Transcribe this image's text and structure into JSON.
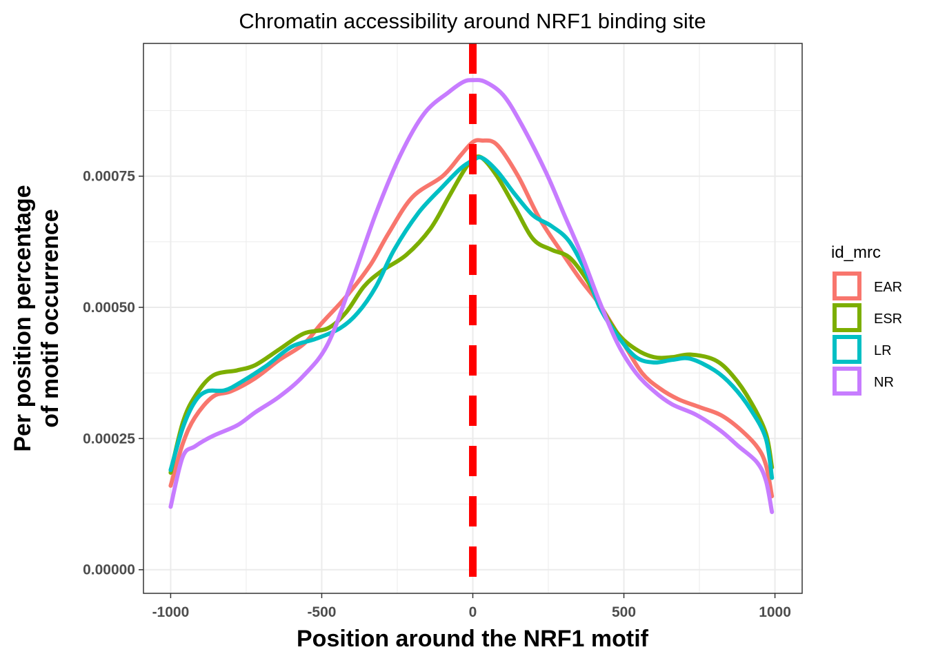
{
  "chart_data": {
    "type": "line",
    "title": "Chromatin accessibility around NRF1 binding site",
    "xlabel": "Position around the NRF1  motif",
    "ylabel_lines": [
      "Per position percentage",
      "of motif occurrence"
    ],
    "xlim": [
      -1090,
      1090
    ],
    "ylim": [
      -4.5e-05,
      0.001003
    ],
    "x_ticks": [
      -1000,
      -500,
      0,
      500,
      1000
    ],
    "x_tick_labels": [
      "-1000",
      "-500",
      "0",
      "500",
      "1000"
    ],
    "y_ticks": [
      0.0,
      0.00025,
      0.0005,
      0.00075
    ],
    "y_tick_labels": [
      "0.00000",
      "0.00025",
      "0.00050",
      "0.00075"
    ],
    "grid": true,
    "reference_line": {
      "x": 0,
      "style": "dashed",
      "color": "#ff0000"
    },
    "legend": {
      "title": "id_mrc",
      "position": "right"
    },
    "series": [
      {
        "name": "EAR",
        "color": "#F8766D",
        "points": [
          [
            -1000,
            0.00016
          ],
          [
            -960,
            0.00024
          ],
          [
            -920,
            0.00029
          ],
          [
            -860,
            0.00033
          ],
          [
            -800,
            0.00034
          ],
          [
            -720,
            0.000365
          ],
          [
            -640,
            0.0004
          ],
          [
            -560,
            0.00043
          ],
          [
            -500,
            0.00047
          ],
          [
            -420,
            0.00052
          ],
          [
            -340,
            0.00058
          ],
          [
            -280,
            0.00064
          ],
          [
            -200,
            0.00071
          ],
          [
            -100,
            0.00075
          ],
          [
            -40,
            0.00079
          ],
          [
            0,
            0.000815
          ],
          [
            30,
            0.000818
          ],
          [
            80,
            0.00081
          ],
          [
            150,
            0.00075
          ],
          [
            220,
            0.00067
          ],
          [
            300,
            0.0006
          ],
          [
            360,
            0.00055
          ],
          [
            420,
            0.000505
          ],
          [
            500,
            0.00043
          ],
          [
            560,
            0.000375
          ],
          [
            620,
            0.000345
          ],
          [
            680,
            0.000325
          ],
          [
            750,
            0.00031
          ],
          [
            820,
            0.000295
          ],
          [
            880,
            0.00027
          ],
          [
            940,
            0.000235
          ],
          [
            970,
            0.0002
          ],
          [
            990,
            0.00014
          ]
        ]
      },
      {
        "name": "ESR",
        "color": "#7CAE00",
        "points": [
          [
            -1000,
            0.000185
          ],
          [
            -960,
            0.00028
          ],
          [
            -920,
            0.00033
          ],
          [
            -860,
            0.00037
          ],
          [
            -780,
            0.00038
          ],
          [
            -720,
            0.00039
          ],
          [
            -640,
            0.00042
          ],
          [
            -560,
            0.00045
          ],
          [
            -480,
            0.00046
          ],
          [
            -420,
            0.00049
          ],
          [
            -360,
            0.00054
          ],
          [
            -300,
            0.00057
          ],
          [
            -220,
            0.0006
          ],
          [
            -140,
            0.00065
          ],
          [
            -80,
            0.00071
          ],
          [
            -30,
            0.00076
          ],
          [
            0,
            0.000782
          ],
          [
            30,
            0.000785
          ],
          [
            80,
            0.00075
          ],
          [
            140,
            0.00069
          ],
          [
            200,
            0.00063
          ],
          [
            260,
            0.00061
          ],
          [
            320,
            0.000595
          ],
          [
            380,
            0.00055
          ],
          [
            420,
            0.000505
          ],
          [
            480,
            0.00045
          ],
          [
            540,
            0.00042
          ],
          [
            600,
            0.000405
          ],
          [
            660,
            0.000405
          ],
          [
            720,
            0.00041
          ],
          [
            800,
            0.0004
          ],
          [
            860,
            0.00037
          ],
          [
            920,
            0.00032
          ],
          [
            970,
            0.00026
          ],
          [
            990,
            0.000195
          ]
        ]
      },
      {
        "name": "LR",
        "color": "#00BFC4",
        "points": [
          [
            -1000,
            0.00019
          ],
          [
            -960,
            0.00027
          ],
          [
            -920,
            0.00032
          ],
          [
            -880,
            0.00034
          ],
          [
            -820,
            0.000342
          ],
          [
            -760,
            0.00036
          ],
          [
            -680,
            0.00039
          ],
          [
            -600,
            0.000425
          ],
          [
            -520,
            0.00044
          ],
          [
            -440,
            0.00046
          ],
          [
            -380,
            0.00049
          ],
          [
            -320,
            0.00054
          ],
          [
            -260,
            0.00061
          ],
          [
            -180,
            0.00068
          ],
          [
            -100,
            0.00073
          ],
          [
            -40,
            0.000765
          ],
          [
            0,
            0.00078
          ],
          [
            30,
            0.000785
          ],
          [
            80,
            0.00076
          ],
          [
            140,
            0.000715
          ],
          [
            200,
            0.000675
          ],
          [
            260,
            0.000655
          ],
          [
            320,
            0.000625
          ],
          [
            380,
            0.00056
          ],
          [
            420,
            0.0005
          ],
          [
            480,
            0.000445
          ],
          [
            540,
            0.000405
          ],
          [
            600,
            0.000395
          ],
          [
            660,
            0.0004
          ],
          [
            720,
            0.000402
          ],
          [
            800,
            0.00038
          ],
          [
            860,
            0.00035
          ],
          [
            920,
            0.000305
          ],
          [
            970,
            0.00025
          ],
          [
            990,
            0.000175
          ]
        ]
      },
      {
        "name": "NR",
        "color": "#C77CFF",
        "points": [
          [
            -1000,
            0.00012
          ],
          [
            -960,
            0.000215
          ],
          [
            -920,
            0.000235
          ],
          [
            -860,
            0.000255
          ],
          [
            -780,
            0.000275
          ],
          [
            -720,
            0.0003
          ],
          [
            -640,
            0.00033
          ],
          [
            -560,
            0.00037
          ],
          [
            -480,
            0.00043
          ],
          [
            -400,
            0.00055
          ],
          [
            -320,
            0.00068
          ],
          [
            -240,
            0.00079
          ],
          [
            -160,
            0.00087
          ],
          [
            -80,
            0.00091
          ],
          [
            -30,
            0.00093
          ],
          [
            0,
            0.000933
          ],
          [
            40,
            0.00093
          ],
          [
            100,
            0.000905
          ],
          [
            160,
            0.00085
          ],
          [
            240,
            0.00076
          ],
          [
            300,
            0.00068
          ],
          [
            360,
            0.0006
          ],
          [
            420,
            0.00051
          ],
          [
            480,
            0.00043
          ],
          [
            540,
            0.000375
          ],
          [
            600,
            0.00034
          ],
          [
            660,
            0.000315
          ],
          [
            740,
            0.000295
          ],
          [
            820,
            0.000265
          ],
          [
            880,
            0.000235
          ],
          [
            940,
            0.000205
          ],
          [
            970,
            0.00017
          ],
          [
            990,
            0.00011
          ]
        ]
      }
    ]
  }
}
